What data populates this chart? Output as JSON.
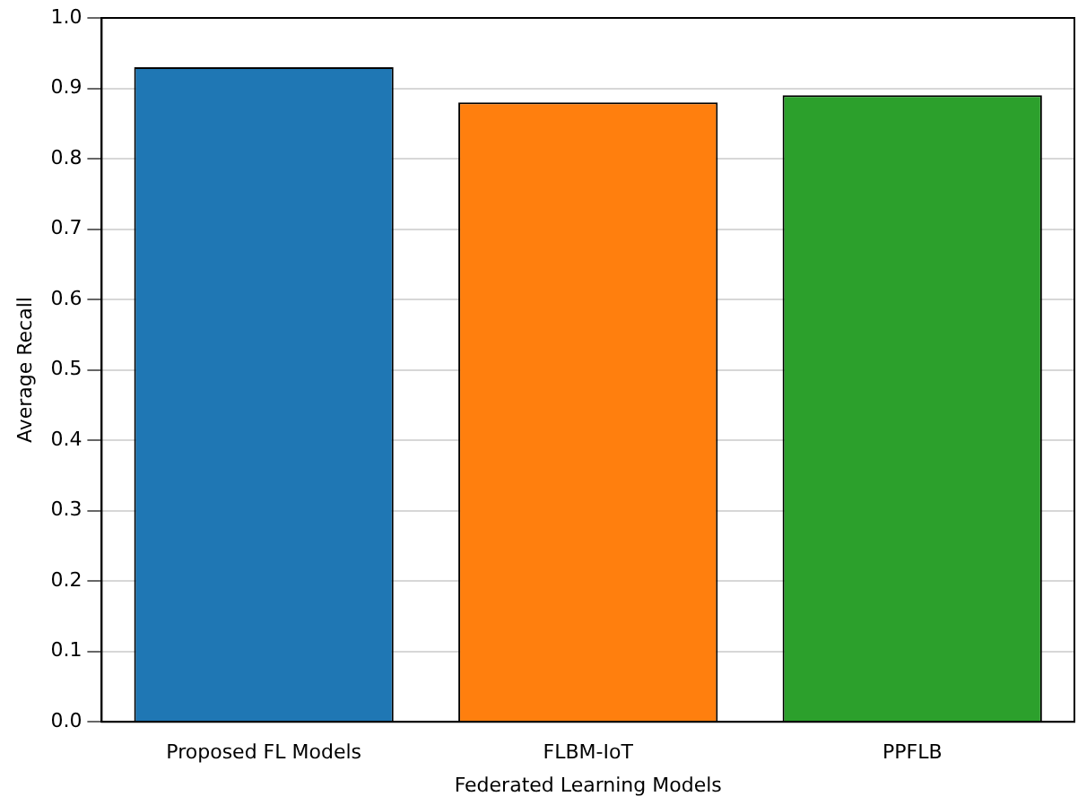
{
  "chart_data": {
    "type": "bar",
    "xlabel": "Federated Learning Models",
    "ylabel": "Average Recall",
    "categories": [
      "Proposed FL Models",
      "FLBM-IoT",
      "PPFLB"
    ],
    "values": [
      0.93,
      0.88,
      0.89
    ],
    "colors": [
      "#1f77b4",
      "#ff7f0e",
      "#2ca02c"
    ],
    "ylim": [
      0,
      1
    ],
    "yticks": [
      {
        "value": 0,
        "label": "0.0"
      },
      0.1,
      0.2,
      0.3,
      0.4,
      0.5,
      0.6,
      0.7,
      0.8,
      0.9,
      {
        "value": 1,
        "label": "1.0"
      }
    ],
    "grid": "y",
    "legend": false
  }
}
